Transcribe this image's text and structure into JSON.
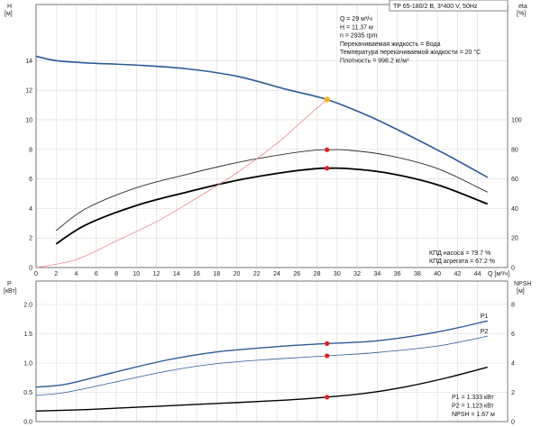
{
  "chart_data": {
    "type": "line",
    "title": "TP 65-180/2 B, 3*400 V, 50Hz",
    "info_top": [
      "Q = 29 м³/ч",
      "H = 11.37 м",
      "n = 2935 rpm",
      "Перекачиваемая жидкость = Вода",
      "Температура перекачиваемой жидкости = 20 °C",
      "Плотность = 998.2 кг/м³"
    ],
    "info_eff": [
      "КПД насоса = 79.7 %",
      "КПД агрегата = 67.2 %"
    ],
    "info_bottom": [
      "P1 = 1.333 кВт",
      "P2 = 1.123 кВт",
      "NPSH = 1.67 м"
    ],
    "x_axis": {
      "label": "Q [м³/ч]",
      "range": [
        0,
        47
      ],
      "ticks": [
        "0",
        "2",
        "4",
        "6",
        "8",
        "10",
        "12",
        "14",
        "16",
        "18",
        "20",
        "22",
        "24",
        "26",
        "28",
        "30",
        "32",
        "34",
        "36",
        "38",
        "40",
        "42",
        "44"
      ]
    },
    "top_left_axis": {
      "name": "H",
      "unit": "[м]",
      "range": [
        0,
        17.8
      ],
      "ticks": [
        "0",
        "2",
        "4",
        "6",
        "8",
        "10",
        "12",
        "14"
      ]
    },
    "top_right_axis": {
      "name": "eta",
      "unit": "[%]",
      "range": [
        0,
        178
      ],
      "ticks": [
        "0",
        "20",
        "40",
        "60",
        "80",
        "100"
      ]
    },
    "bottom_left_axis": {
      "name": "P",
      "unit": "[кВт]",
      "range": [
        0,
        2.4
      ],
      "ticks": [
        "0.0",
        "0.5",
        "1.0",
        "1.5",
        "2.0"
      ]
    },
    "bottom_right_axis": {
      "name": "NPSH",
      "unit": "[м]",
      "range": [
        0,
        9.6
      ],
      "ticks": [
        "0",
        "2",
        "4",
        "6",
        "8"
      ]
    },
    "series": [
      {
        "name": "",
        "panel": "top",
        "axis": "left",
        "color": "#2b5a97",
        "width": 1.6,
        "x": [
          0,
          2,
          5,
          10,
          15,
          20,
          25,
          29,
          33,
          37,
          41,
          45
        ],
        "y": [
          14.3,
          14.0,
          13.85,
          13.7,
          13.45,
          12.95,
          12.05,
          11.37,
          10.3,
          9.0,
          7.6,
          6.1
        ]
      },
      {
        "name": "",
        "panel": "top",
        "axis": "right",
        "color": "#2a2a2a",
        "width": 0.9,
        "x": [
          2,
          5,
          10,
          15,
          20,
          25,
          28,
          29,
          31,
          35,
          40,
          45
        ],
        "y": [
          25,
          40,
          54,
          63,
          71,
          77,
          79.5,
          79.7,
          79.5,
          76,
          67,
          51
        ]
      },
      {
        "name": "",
        "panel": "top",
        "axis": "right",
        "color": "#000000",
        "width": 1.8,
        "x": [
          2,
          5,
          10,
          15,
          20,
          25,
          28,
          29,
          31,
          35,
          40,
          45
        ],
        "y": [
          16,
          29,
          42,
          51,
          59,
          64.7,
          67,
          67.2,
          67,
          64,
          56,
          43
        ]
      },
      {
        "name": "",
        "panel": "top",
        "axis": "left",
        "color": "#f28a8a",
        "width": 0.8,
        "x": [
          0,
          4,
          8,
          12,
          16,
          20,
          24,
          27,
          29
        ],
        "y": [
          0,
          0.54,
          1.8,
          3.1,
          4.7,
          6.4,
          8.4,
          10.2,
          11.37
        ]
      },
      {
        "name": "P1",
        "panel": "bottom",
        "axis": "left",
        "color": "#2b5a97",
        "width": 1.4,
        "x": [
          0,
          3,
          8,
          13,
          18,
          24,
          29,
          34,
          40,
          45
        ],
        "y": [
          0.59,
          0.64,
          0.85,
          1.05,
          1.19,
          1.28,
          1.333,
          1.38,
          1.53,
          1.72
        ]
      },
      {
        "name": "P2",
        "panel": "bottom",
        "axis": "left",
        "color": "#2b5a97",
        "width": 0.8,
        "x": [
          0,
          3,
          8,
          13,
          18,
          24,
          29,
          34,
          40,
          45
        ],
        "y": [
          0.45,
          0.5,
          0.68,
          0.86,
          0.99,
          1.07,
          1.123,
          1.18,
          1.29,
          1.46
        ]
      },
      {
        "name": "",
        "panel": "bottom",
        "axis": "right",
        "color": "#000000",
        "width": 1.4,
        "x": [
          0,
          5,
          10,
          15,
          20,
          25,
          29,
          33,
          37,
          41,
          45
        ],
        "y": [
          0.72,
          0.82,
          0.98,
          1.14,
          1.3,
          1.47,
          1.67,
          1.95,
          2.4,
          3.0,
          3.72
        ]
      }
    ],
    "markers": [
      {
        "panel": "top",
        "axis": "left",
        "x": 29,
        "y": 11.37,
        "color": "#f0b830",
        "r": 3.2
      },
      {
        "panel": "top",
        "axis": "right",
        "x": 29,
        "y": 79.7,
        "color": "#e02020",
        "r": 2.6
      },
      {
        "panel": "top",
        "axis": "right",
        "x": 29,
        "y": 67.2,
        "color": "#e02020",
        "r": 2.6
      },
      {
        "panel": "bottom",
        "axis": "left",
        "x": 29,
        "y": 1.333,
        "color": "#e02020",
        "r": 2.6
      },
      {
        "panel": "bottom",
        "axis": "left",
        "x": 29,
        "y": 1.123,
        "color": "#e02020",
        "r": 2.6
      },
      {
        "panel": "bottom",
        "axis": "right",
        "x": 29,
        "y": 1.67,
        "color": "#e02020",
        "r": 2.6
      }
    ],
    "grid": true
  }
}
